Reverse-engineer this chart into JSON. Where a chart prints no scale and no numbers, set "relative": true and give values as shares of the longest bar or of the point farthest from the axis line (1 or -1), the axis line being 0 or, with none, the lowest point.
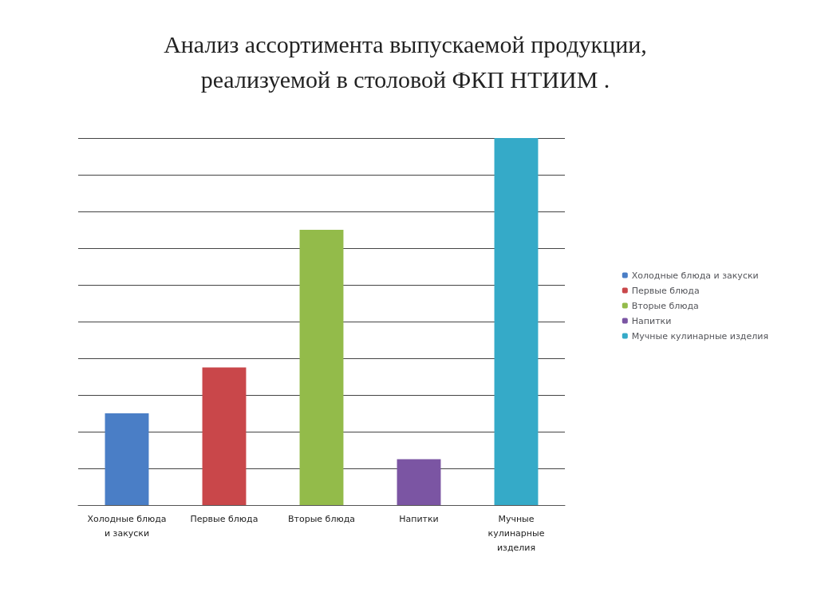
{
  "chart_data": {
    "type": "bar",
    "title": "Анализ ассортимента выпускаемой продукции,\nреализуемой в столовой ФКП НТИИМ .",
    "categories": [
      "Холодные блюда\nи закуски",
      "Первые блюда",
      "Вторые блюда",
      "Напитки",
      "Мучные\nкулинарные\nизделия"
    ],
    "series": [
      {
        "name": "Холодные блюда и закуски",
        "color": "#4a7ec6",
        "values": [
          0.25,
          null,
          null,
          null,
          null
        ]
      },
      {
        "name": "Первые блюда",
        "color": "#c9474a",
        "values": [
          null,
          0.375,
          null,
          null,
          null
        ]
      },
      {
        "name": "Вторые блюда",
        "color": "#93bb4a",
        "values": [
          null,
          null,
          0.75,
          null,
          null
        ]
      },
      {
        "name": "Напитки",
        "color": "#7b55a3",
        "values": [
          null,
          null,
          null,
          0.125,
          null
        ]
      },
      {
        "name": "Мучные кулинарные изделия",
        "color": "#35aac8",
        "values": [
          null,
          null,
          null,
          null,
          1
        ]
      }
    ],
    "stacked": true,
    "relative": true,
    "grid": "y",
    "legend": "right"
  }
}
